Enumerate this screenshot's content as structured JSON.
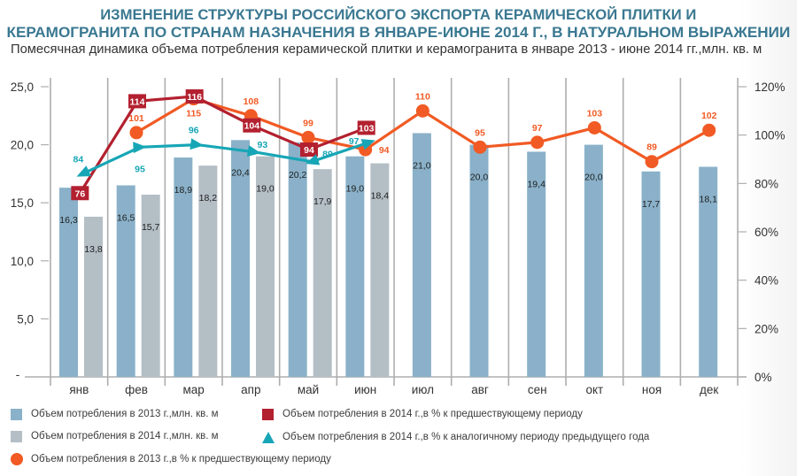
{
  "chart_data": {
    "type": "bar",
    "title_lines": [
      "ИЗМЕНЕНИЕ СТРУКТУРЫ РОССИЙСКОГО ЭКСПОРТА КЕРАМИЧЕСКОЙ ПЛИТКИ И",
      "КЕРАМОГРАНИТА ПО СТРАНАМ НАЗНАЧЕНИЯ В ЯНВАРЕ-ИЮНЕ 2014 Г., В НАТУРАЛЬНОМ ВЫРАЖЕНИИ"
    ],
    "subtitle": "Помесячная динамика объема потребления керамической плитки и керамогранита в январе 2013 - июне 2014 гг.,млн. кв. м",
    "xlabel": "",
    "categories": [
      "янв",
      "фев",
      "мар",
      "апр",
      "май",
      "июн",
      "июл",
      "авг",
      "сен",
      "окт",
      "ноя",
      "дек"
    ],
    "y_left": {
      "label": "",
      "ylim": [
        0,
        25
      ],
      "ticks": [
        0,
        5,
        10,
        15,
        20,
        25
      ],
      "tick_labels": [
        "-",
        "5,0",
        "10,0",
        "15,0",
        "20,0",
        "25,0"
      ]
    },
    "y_right": {
      "label": "",
      "ylim": [
        0,
        120
      ],
      "ticks": [
        0,
        20,
        40,
        60,
        80,
        100,
        120
      ],
      "tick_labels": [
        "0%",
        "20%",
        "40%",
        "60%",
        "80%",
        "100%",
        "120%"
      ]
    },
    "grid": false,
    "legend_position": "bottom",
    "series": [
      {
        "name": "Объем потребления в 2013 г.,млн. кв. м",
        "type": "bar",
        "axis": "left",
        "color": "#8ab1c9",
        "values": [
          16.3,
          16.5,
          18.9,
          20.4,
          20.2,
          19.0,
          21.0,
          20.0,
          19.4,
          20.0,
          17.7,
          18.1
        ],
        "labels": [
          "16,3",
          "16,5",
          "18,9",
          "20,4",
          "20,2",
          "19,0",
          "21,0",
          "20,0",
          "19,4",
          "20,0",
          "17,7",
          "18,1"
        ]
      },
      {
        "name": "Объем потребления в 2014 г.,млн. кв. м",
        "type": "bar",
        "axis": "left",
        "color": "#b4bec5",
        "values": [
          13.8,
          15.7,
          18.2,
          19.0,
          17.9,
          18.4,
          null,
          null,
          null,
          null,
          null,
          null
        ],
        "labels": [
          "13,8",
          "15,7",
          "18,2",
          "19,0",
          "17,9",
          "18,4",
          null,
          null,
          null,
          null,
          null,
          null
        ]
      },
      {
        "name": "Объем потребления в 2013 г.,в % к предшествующему периоду",
        "type": "line",
        "marker": "circle",
        "axis": "right",
        "color": "#f15a24",
        "values": [
          null,
          101,
          115,
          108,
          99,
          94,
          110,
          95,
          97,
          103,
          89,
          102
        ],
        "labels": [
          null,
          "101",
          "115",
          "108",
          "99",
          "94",
          "110",
          "95",
          "97",
          "103",
          "89",
          "102"
        ]
      },
      {
        "name": "Объем потребления в 2014 г.,в % к предшествующему периоду",
        "type": "line",
        "marker": "square",
        "axis": "right",
        "color": "#b3202f",
        "values": [
          76,
          114,
          116,
          104,
          94,
          103,
          null,
          null,
          null,
          null,
          null,
          null
        ],
        "labels": [
          "76",
          "114",
          "116",
          "104",
          "94",
          "103",
          null,
          null,
          null,
          null,
          null,
          null
        ]
      },
      {
        "name": "Объем потребления в 2014 г.,в % к аналогичному периоду предыдущего года",
        "type": "line",
        "marker": "triangle",
        "axis": "right",
        "color": "#17a6b6",
        "values": [
          84,
          95,
          96,
          93,
          89,
          97,
          null,
          null,
          null,
          null,
          null,
          null
        ],
        "labels": [
          "84",
          "95",
          "96",
          "93",
          "89",
          "97",
          null,
          null,
          null,
          null,
          null,
          null
        ]
      }
    ]
  }
}
